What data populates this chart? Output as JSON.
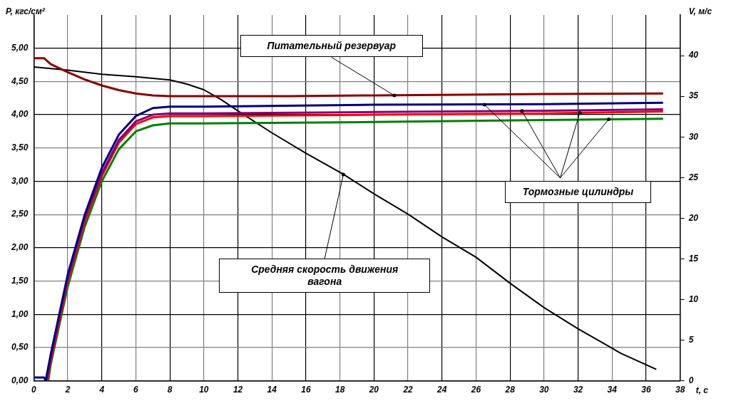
{
  "chart_data": {
    "type": "line",
    "xlabel": "t, с",
    "ylabel": "P, кгс/см²",
    "y2label": "V, м/с",
    "xlim": [
      0,
      38
    ],
    "xticks": [
      0,
      2,
      4,
      6,
      8,
      10,
      12,
      14,
      16,
      18,
      20,
      22,
      24,
      26,
      28,
      30,
      32,
      34,
      36,
      38
    ],
    "ylim": [
      0,
      5.5
    ],
    "yticks": [
      {
        "value": 0,
        "label": "0,00"
      },
      {
        "value": 0.5,
        "label": "0,50"
      },
      {
        "value": 1,
        "label": "1,00"
      },
      {
        "value": 1.5,
        "label": "1,50"
      },
      {
        "value": 2,
        "label": "2,00"
      },
      {
        "value": 2.5,
        "label": "2,50"
      },
      {
        "value": 3,
        "label": "3,00"
      },
      {
        "value": 3.5,
        "label": "3,50"
      },
      {
        "value": 4,
        "label": "4,00"
      },
      {
        "value": 4.5,
        "label": "4,50"
      },
      {
        "value": 5,
        "label": "5,00"
      }
    ],
    "y2lim": [
      0,
      45
    ],
    "y2ticks": [
      0,
      5,
      10,
      15,
      20,
      25,
      30,
      35,
      40
    ],
    "grid": true,
    "legend": false,
    "marker": "none",
    "line_style": "solid",
    "series": [
      {
        "color": "#8b0000",
        "x": [
          0,
          0.6,
          1,
          2,
          3,
          4,
          5,
          6,
          7,
          8,
          10,
          15,
          20,
          25,
          30,
          37
        ],
        "values": [
          4.85,
          4.85,
          4.76,
          4.64,
          4.53,
          4.44,
          4.37,
          4.32,
          4.29,
          4.28,
          4.28,
          4.28,
          4.29,
          4.3,
          4.31,
          4.32
        ]
      },
      {
        "color": "#000080",
        "x": [
          0,
          0.6,
          0.7,
          1,
          2,
          3,
          4,
          5,
          6,
          7,
          8,
          10,
          20,
          30,
          37
        ],
        "values": [
          0.05,
          0.05,
          0,
          0.4,
          1.6,
          2.5,
          3.2,
          3.7,
          3.98,
          4.1,
          4.12,
          4.12,
          4.15,
          4.16,
          4.18
        ]
      },
      {
        "color": "#800080",
        "x": [
          0.75,
          1,
          2,
          3,
          4,
          5,
          6,
          7,
          8,
          10,
          20,
          30,
          37
        ],
        "values": [
          0,
          0.35,
          1.55,
          2.45,
          3.12,
          3.62,
          3.9,
          4.0,
          4.02,
          4.02,
          4.04,
          4.06,
          4.08
        ]
      },
      {
        "color": "#ff0000",
        "x": [
          0.8,
          1,
          2,
          3,
          4,
          5,
          6,
          7,
          8,
          10,
          20,
          30,
          37
        ],
        "values": [
          0,
          0.3,
          1.5,
          2.4,
          3.08,
          3.58,
          3.86,
          3.96,
          3.98,
          3.98,
          4.0,
          4.02,
          4.05
        ]
      },
      {
        "color": "#008000",
        "x": [
          0.85,
          1,
          2,
          3,
          4,
          5,
          6,
          7,
          8,
          10,
          20,
          30,
          37
        ],
        "values": [
          0,
          0.25,
          1.42,
          2.32,
          3.0,
          3.48,
          3.75,
          3.84,
          3.87,
          3.87,
          3.89,
          3.92,
          3.94
        ]
      },
      {
        "color": "#000000",
        "axis": "y2",
        "x": [
          0,
          2,
          4,
          6,
          8,
          9,
          10,
          11,
          12,
          14,
          16,
          18.2,
          20,
          22,
          24,
          26,
          28,
          30,
          32,
          34,
          34.5,
          36.6
        ],
        "values": [
          38.6,
          38.2,
          37.7,
          37.4,
          37.0,
          36.5,
          35.8,
          34.6,
          33.2,
          30.5,
          28,
          25.4,
          23,
          20.5,
          17.7,
          15.2,
          12,
          9,
          6.4,
          4,
          3.4,
          1.4
        ]
      }
    ],
    "annotations": [
      {
        "text": "Питательный резервуар",
        "x": 21.2,
        "y": 4.29
      },
      {
        "text": "Тормозные цилиндры",
        "x": 26.5,
        "y": 4.15
      },
      {
        "text": "Средняя скорость движения вагона",
        "x": 18.2,
        "y": 3.1
      }
    ]
  }
}
